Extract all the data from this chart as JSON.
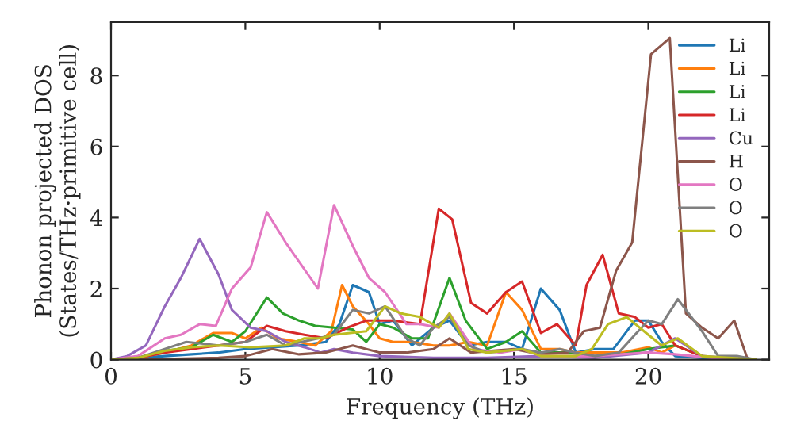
{
  "chart_data": {
    "type": "line",
    "xlabel": "Frequency (THz)",
    "ylabel": "Phonon projected DOS\n(States/THz·primitive cell)",
    "xlim": [
      0,
      24.5
    ],
    "ylim": [
      0,
      9.5
    ],
    "xticks": [
      0,
      5,
      10,
      15,
      20
    ],
    "yticks": [
      0,
      2,
      4,
      6,
      8
    ],
    "grid": false,
    "legend": "top right",
    "series": [
      {
        "name": "Li",
        "color": "#1f77b4",
        "x": [
          0,
          1,
          2,
          3,
          4,
          5,
          6,
          7,
          8,
          8.5,
          9,
          9.6,
          10,
          10.5,
          11.2,
          12,
          12.6,
          13.3,
          14,
          14.7,
          15.3,
          16,
          16.7,
          17.3,
          18,
          18.7,
          19.5,
          20,
          20.5,
          21,
          22,
          23,
          24
        ],
        "values": [
          0,
          0.05,
          0.1,
          0.15,
          0.2,
          0.3,
          0.35,
          0.4,
          0.5,
          1.0,
          2.1,
          1.9,
          1.0,
          1.1,
          0.4,
          0.9,
          1.1,
          0.4,
          0.5,
          0.5,
          0.3,
          2.0,
          1.4,
          0.2,
          0.3,
          0.3,
          1.1,
          1.1,
          0.5,
          0.1,
          0.05,
          0,
          0
        ]
      },
      {
        "name": "Li",
        "color": "#ff7f0e",
        "x": [
          0,
          1,
          2,
          3,
          3.8,
          4.5,
          5,
          5.6,
          6.2,
          7,
          7.6,
          8.2,
          8.6,
          9,
          9.6,
          10,
          10.5,
          11.2,
          12,
          12.6,
          13.3,
          14,
          14.7,
          15.3,
          16,
          16.7,
          17.3,
          18,
          19,
          20,
          20.5,
          21,
          22
        ],
        "values": [
          0,
          0.05,
          0.2,
          0.4,
          0.75,
          0.75,
          0.6,
          0.9,
          0.6,
          0.5,
          0.4,
          0.8,
          2.1,
          1.5,
          1.0,
          0.6,
          0.5,
          0.5,
          0.4,
          0.4,
          0.5,
          0.4,
          1.9,
          1.4,
          0.3,
          0.3,
          0.2,
          0.2,
          0.2,
          0.35,
          0.2,
          0.4,
          0.1
        ]
      },
      {
        "name": "Li",
        "color": "#2ca02c",
        "x": [
          2,
          3,
          3.8,
          4.5,
          5,
          5.8,
          6.4,
          7,
          7.6,
          8.3,
          9,
          9.5,
          10,
          10.5,
          11.2,
          11.8,
          12.6,
          13.2,
          14,
          14.7,
          15.3,
          16,
          17,
          18,
          19,
          20,
          21,
          22
        ],
        "values": [
          0.25,
          0.35,
          0.7,
          0.5,
          0.8,
          1.75,
          1.3,
          1.1,
          0.95,
          0.9,
          0.85,
          0.5,
          1.0,
          0.9,
          0.6,
          0.6,
          2.3,
          1.1,
          0.3,
          0.5,
          0.8,
          0.2,
          0.2,
          0.1,
          0.15,
          0.3,
          0.4,
          0.1
        ]
      },
      {
        "name": "Li",
        "color": "#d62728",
        "x": [
          0,
          1,
          2,
          3,
          4,
          5,
          5.8,
          6.5,
          7.2,
          8,
          8.8,
          9.5,
          10.5,
          11.5,
          12.2,
          12.7,
          13.4,
          14,
          14.7,
          15.3,
          16,
          16.6,
          17.3,
          17.7,
          18.3,
          18.9,
          19.5,
          20,
          20.5,
          21,
          22,
          23,
          24
        ],
        "values": [
          0,
          0.05,
          0.2,
          0.3,
          0.4,
          0.5,
          0.95,
          0.8,
          0.7,
          0.6,
          0.9,
          1.1,
          1.1,
          1.0,
          4.25,
          3.95,
          1.6,
          1.3,
          1.9,
          2.2,
          0.75,
          1.0,
          0.4,
          2.1,
          2.95,
          1.3,
          1.2,
          0.9,
          1.0,
          0.4,
          0.1,
          0,
          0
        ]
      },
      {
        "name": "Cu",
        "color": "#9467bd",
        "x": [
          0,
          0.6,
          1.3,
          2,
          2.6,
          3.3,
          4,
          4.5,
          5.2,
          5.8,
          6.5,
          7.2,
          7.8,
          8.3,
          9,
          10,
          12,
          14,
          16,
          18,
          20,
          21,
          22,
          24
        ],
        "values": [
          0,
          0.1,
          0.4,
          1.5,
          2.3,
          3.4,
          2.4,
          1.4,
          0.9,
          0.8,
          0.5,
          0.35,
          0.2,
          0.3,
          0.2,
          0.1,
          0.05,
          0.05,
          0.1,
          0.05,
          0.2,
          0.6,
          0.1,
          0
        ]
      },
      {
        "name": "H",
        "color": "#8c564b",
        "x": [
          0,
          2,
          4,
          5,
          6,
          7,
          8,
          9,
          10,
          11,
          12,
          12.6,
          13.4,
          15,
          16,
          17,
          17.6,
          18.2,
          18.8,
          19.4,
          20.1,
          20.8,
          21.4,
          22,
          22.6,
          23.2,
          23.7,
          24
        ],
        "values": [
          0,
          0.02,
          0.05,
          0.1,
          0.3,
          0.15,
          0.2,
          0.4,
          0.2,
          0.2,
          0.3,
          0.6,
          0.2,
          0.3,
          0.15,
          0.2,
          0.8,
          0.9,
          2.5,
          3.3,
          8.6,
          9.05,
          1.3,
          0.9,
          0.6,
          1.1,
          0,
          0
        ]
      },
      {
        "name": "O",
        "color": "#e377c2",
        "x": [
          0,
          1,
          2,
          2.6,
          3.3,
          3.9,
          4.5,
          5.2,
          5.8,
          6.5,
          7.7,
          8.3,
          9,
          9.6,
          10.2,
          11,
          11.5,
          12.2,
          12.6,
          13.5,
          14.5,
          15.3,
          16,
          18,
          20,
          21,
          23,
          24
        ],
        "values": [
          0,
          0.1,
          0.6,
          0.7,
          1.0,
          0.95,
          2.0,
          2.6,
          4.15,
          3.3,
          2.0,
          4.35,
          3.2,
          2.3,
          1.9,
          1.0,
          1.0,
          0.9,
          1.3,
          0.3,
          0.2,
          0.3,
          0.1,
          0.1,
          0.2,
          0.15,
          0,
          0
        ]
      },
      {
        "name": "O",
        "color": "#7f7f7f",
        "x": [
          0,
          1,
          2,
          2.8,
          4,
          5,
          5.8,
          6.5,
          7.7,
          8.3,
          9,
          9.6,
          10.2,
          11,
          11.5,
          12,
          12.6,
          13.3,
          14,
          15.3,
          16,
          16.7,
          17.3,
          18,
          18.9,
          19.5,
          20,
          20.5,
          21.1,
          22,
          22.6,
          23.3,
          24
        ],
        "values": [
          0,
          0.05,
          0.3,
          0.5,
          0.4,
          0.5,
          0.7,
          0.4,
          0.6,
          0.7,
          1.4,
          1.3,
          1.5,
          0.6,
          0.4,
          0.9,
          1.2,
          0.4,
          0.2,
          0.3,
          0.2,
          0.3,
          0.2,
          0.1,
          0.2,
          0.7,
          1.1,
          1.0,
          1.7,
          0.8,
          0.1,
          0.1,
          0
        ]
      },
      {
        "name": "O",
        "color": "#bcbd22",
        "x": [
          0,
          1,
          2,
          3,
          4,
          5.2,
          6.5,
          7.2,
          7.8,
          8.3,
          9.5,
          10.2,
          10.8,
          11.5,
          12.2,
          12.6,
          13.3,
          14,
          15.3,
          16,
          17.3,
          17.9,
          18.5,
          19.2,
          20,
          20.5,
          21.1,
          22,
          24
        ],
        "values": [
          0,
          0.05,
          0.25,
          0.35,
          0.4,
          0.35,
          0.4,
          0.6,
          0.6,
          0.7,
          0.8,
          1.5,
          1.3,
          1.2,
          0.9,
          1.3,
          0.3,
          0.2,
          0.3,
          0.1,
          0.1,
          0.3,
          1.0,
          1.2,
          0.7,
          0.4,
          0.6,
          0.1,
          0
        ]
      }
    ]
  }
}
